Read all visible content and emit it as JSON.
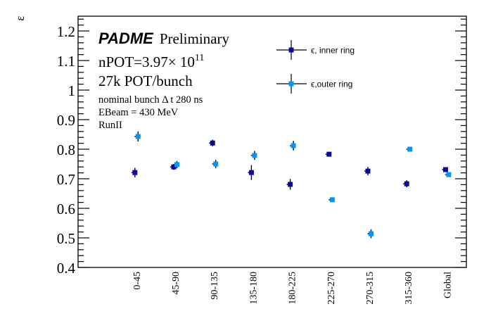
{
  "chart_data": {
    "type": "scatter",
    "title": "",
    "xlabel": "",
    "ylabel": "ε",
    "ylim": [
      0.4,
      1.25
    ],
    "yticks": [
      "0.4",
      "0.5",
      "0.6",
      "0.7",
      "0.8",
      "0.9",
      "1",
      "1.1",
      "1.2"
    ],
    "ytick_values": [
      0.4,
      0.5,
      0.6,
      0.7,
      0.8,
      0.9,
      1.0,
      1.1,
      1.2
    ],
    "grid": false,
    "legend_position": "top-right",
    "categories": [
      "0-45",
      "45-90",
      "90-135",
      "135-180",
      "180-225",
      "225-270",
      "270-315",
      "315-360",
      "Global"
    ],
    "series": [
      {
        "name": "ϵ, inner ring",
        "color": "#0a0a96",
        "values": [
          0.721,
          0.74,
          0.821,
          0.721,
          0.681,
          0.783,
          0.726,
          0.683,
          0.731
        ],
        "errors": [
          0.016,
          0.01,
          0.011,
          0.025,
          0.018,
          0.008,
          0.014,
          0.012,
          0.004
        ]
      },
      {
        "name": "ϵ,outer ring",
        "color": "#0096ff",
        "values": [
          0.843,
          0.748,
          0.75,
          0.779,
          0.812,
          0.629,
          0.514,
          0.8,
          0.714
        ],
        "errors": [
          0.017,
          0.012,
          0.014,
          0.015,
          0.016,
          0.008,
          0.015,
          0.008,
          0.005
        ]
      }
    ],
    "annotations": {
      "brand": "PADME",
      "brand_suffix": "Preliminary",
      "npot_prefix": "nPOT=3.97× 10",
      "npot_exponent": "11",
      "pot_per_bunch": "27k POT/bunch",
      "bunch_dt": "nominal bunch Δ t 280 ns",
      "ebeam": "EBeam = 430 MeV",
      "run": "RunII"
    }
  }
}
